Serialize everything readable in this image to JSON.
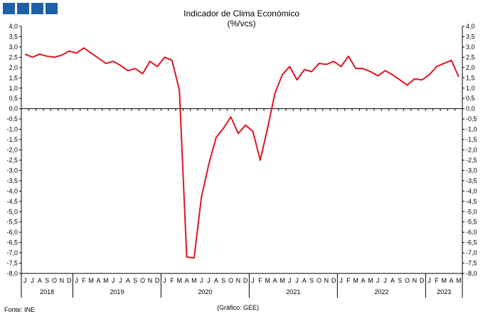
{
  "chart_data": {
    "type": "line",
    "title": "Indicador de Clima Económico",
    "subtitle": "(%/vcs)",
    "xlabel": "",
    "ylabel": "",
    "ylim": [
      -8.0,
      4.0
    ],
    "ytick_step": 0.5,
    "ytick_labels": [
      "4,0",
      "3,5",
      "3,0",
      "2,5",
      "2,0",
      "1,5",
      "1,0",
      "0,5",
      "0,0",
      "-0,5",
      "-1,0",
      "-1,5",
      "-2,0",
      "-2,5",
      "-3,0",
      "-3,5",
      "-4,0",
      "-4,5",
      "-5,0",
      "-5,5",
      "-6,0",
      "-6,5",
      "-7,0",
      "-7,5",
      "-8,0"
    ],
    "grid": false,
    "dual_y_axis": true,
    "line_color": "#e0141e",
    "x_month_labels": [
      "J",
      "J",
      "A",
      "S",
      "O",
      "N",
      "D",
      "J",
      "F",
      "M",
      "A",
      "M",
      "J",
      "J",
      "A",
      "S",
      "O",
      "N",
      "D",
      "J",
      "F",
      "M",
      "A",
      "M",
      "J",
      "J",
      "A",
      "S",
      "O",
      "N",
      "D",
      "J",
      "F",
      "M",
      "A",
      "M",
      "J",
      "J",
      "A",
      "S",
      "O",
      "N",
      "D",
      "J",
      "F",
      "M",
      "A",
      "M",
      "J",
      "J",
      "A",
      "S",
      "O",
      "N",
      "D",
      "J",
      "F",
      "M",
      "A",
      "M"
    ],
    "x_year_groups": [
      {
        "label": "2018",
        "start": 0,
        "count": 7
      },
      {
        "label": "2019",
        "start": 7,
        "count": 12
      },
      {
        "label": "2020",
        "start": 19,
        "count": 12
      },
      {
        "label": "2021",
        "start": 31,
        "count": 12
      },
      {
        "label": "2022",
        "start": 43,
        "count": 12
      },
      {
        "label": "2023",
        "start": 55,
        "count": 5
      }
    ],
    "series": [
      {
        "values": [
          2.65,
          2.5,
          2.65,
          2.55,
          2.5,
          2.6,
          2.8,
          2.7,
          2.95,
          2.7,
          2.45,
          2.2,
          2.3,
          2.1,
          1.85,
          1.95,
          1.7,
          2.3,
          2.05,
          2.5,
          2.35,
          0.9,
          -7.2,
          -7.25,
          -4.3,
          -2.7,
          -1.4,
          -0.95,
          -0.4,
          -1.2,
          -0.8,
          -1.1,
          -2.5,
          -0.95,
          0.75,
          1.65,
          2.05,
          1.4,
          1.9,
          1.8,
          2.2,
          2.15,
          2.3,
          2.05,
          2.55,
          1.95,
          1.95,
          1.8,
          1.6,
          1.85,
          1.65,
          1.4,
          1.15,
          1.45,
          1.4,
          1.65,
          2.05,
          2.2,
          2.35,
          1.55
        ]
      }
    ]
  },
  "footer": {
    "source": "Fonte: INE",
    "credit": "(Gráfico: GEE)"
  },
  "logo_color": "#1f5fa8"
}
